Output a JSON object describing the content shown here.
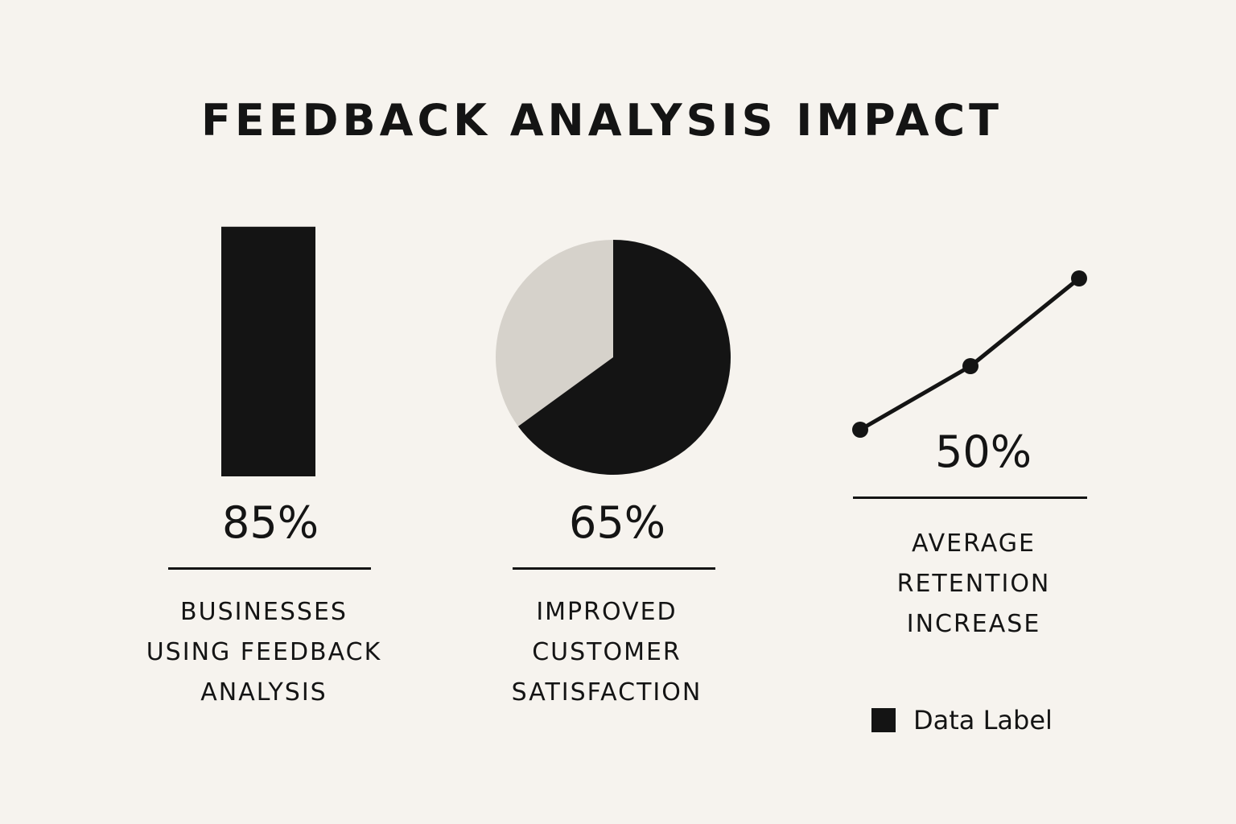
{
  "chart_data": [
    {
      "type": "bar",
      "title": "FEEDBACK ANALYSIS IMPACT",
      "value_label": "85%",
      "value": 85,
      "caption": "BUSINESSES\nUSING FEEDBACK\nANALYSIS"
    },
    {
      "type": "pie",
      "value_label": "65%",
      "value": 65,
      "caption": "IMPROVED\nCUSTOMER\nSATISFACTION"
    },
    {
      "type": "line",
      "value_label": "50%",
      "value": 50,
      "points": 3,
      "caption": "AVERAGE\nRETENTION\nINCREASE"
    }
  ],
  "title": "FEEDBACK ANALYSIS IMPACT",
  "legend": {
    "label": "Data Label",
    "placement": "bottom-right"
  },
  "colors": {
    "background": "#f6f3ee",
    "primary": "#141414",
    "secondary": "#d6d2cb"
  }
}
